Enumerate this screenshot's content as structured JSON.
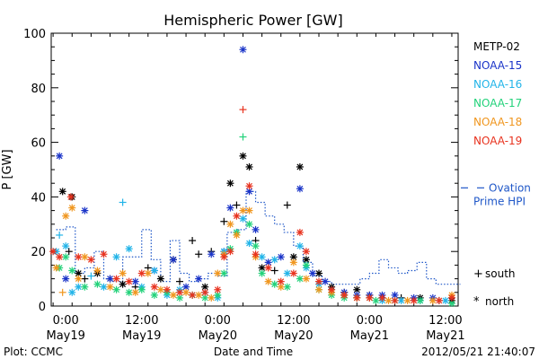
{
  "chart_data": {
    "type": "scatter",
    "title": "Hemispheric Power [GW]",
    "ylabel": "P [GW]",
    "xlabel": "Date and Time",
    "ylim": [
      0,
      100
    ],
    "yticks": [
      0,
      20,
      40,
      60,
      80,
      100
    ],
    "xlim": [
      -2.3,
      62
    ],
    "x_units": "hours since May19 00:00",
    "xticks": [
      {
        "x": 0,
        "time": "0:00",
        "date": "May19"
      },
      {
        "x": 12,
        "time": "12:00",
        "date": "May19"
      },
      {
        "x": 24,
        "time": "0:00",
        "date": "May20"
      },
      {
        "x": 36,
        "time": "12:00",
        "date": "May20"
      },
      {
        "x": 48,
        "time": "0:00",
        "date": "May21"
      },
      {
        "x": 60,
        "time": "12:00",
        "date": "May21"
      }
    ],
    "grid": false,
    "legend_position": "right",
    "markers_legend": [
      {
        "symbol": "+",
        "label": "south"
      },
      {
        "symbol": "*",
        "label": "north"
      }
    ],
    "ovation_legend": {
      "line1": "Ovation",
      "line2": "Prime HPI",
      "color": "#1f57c8"
    },
    "series": [
      {
        "name": "METP-02",
        "color": "#000000",
        "points": [
          [
            -0.5,
            42,
            "*"
          ],
          [
            1,
            40,
            "*"
          ],
          [
            0.5,
            20,
            "+"
          ],
          [
            2,
            12,
            "*"
          ],
          [
            3,
            10,
            "+"
          ],
          [
            5,
            12,
            "*"
          ],
          [
            7,
            10,
            "+"
          ],
          [
            9,
            8,
            "*"
          ],
          [
            11,
            7,
            "+"
          ],
          [
            13,
            14,
            "+"
          ],
          [
            15,
            10,
            "*"
          ],
          [
            17,
            17,
            "*"
          ],
          [
            18,
            9,
            "+"
          ],
          [
            20,
            24,
            "+"
          ],
          [
            21,
            19,
            "+"
          ],
          [
            22,
            7,
            "*"
          ],
          [
            23,
            20,
            "+"
          ],
          [
            25,
            31,
            "+"
          ],
          [
            26,
            45,
            "*"
          ],
          [
            27,
            37,
            "+"
          ],
          [
            28,
            55,
            "*"
          ],
          [
            29,
            51,
            "*"
          ],
          [
            30,
            24,
            "+"
          ],
          [
            31,
            14,
            "*"
          ],
          [
            33,
            13,
            "+"
          ],
          [
            35,
            37,
            "+"
          ],
          [
            36,
            18,
            "*"
          ],
          [
            37,
            51,
            "*"
          ],
          [
            38,
            17,
            "*"
          ],
          [
            40,
            12,
            "*"
          ],
          [
            42,
            7,
            "*"
          ],
          [
            44,
            5,
            "+"
          ],
          [
            46,
            6,
            "*"
          ],
          [
            48,
            4,
            "+"
          ],
          [
            50,
            3,
            "*"
          ],
          [
            53,
            3,
            "+"
          ],
          [
            56,
            3,
            "*"
          ],
          [
            59,
            2,
            "+"
          ],
          [
            61,
            2,
            "*"
          ]
        ]
      },
      {
        "name": "NOAA-15",
        "color": "#1a34c8",
        "points": [
          [
            -1,
            55,
            "*"
          ],
          [
            0,
            10,
            "*"
          ],
          [
            3,
            35,
            "*"
          ],
          [
            7,
            10,
            "*"
          ],
          [
            11,
            9,
            "*"
          ],
          [
            14,
            13,
            "*"
          ],
          [
            17,
            17,
            "*"
          ],
          [
            19,
            7,
            "*"
          ],
          [
            21,
            10,
            "*"
          ],
          [
            23,
            19,
            "*"
          ],
          [
            25,
            20,
            "*"
          ],
          [
            26,
            36,
            "*"
          ],
          [
            28,
            94,
            "*"
          ],
          [
            29,
            42,
            "*"
          ],
          [
            30,
            28,
            "*"
          ],
          [
            32,
            16,
            "*"
          ],
          [
            34,
            18,
            "*"
          ],
          [
            37,
            43,
            "*"
          ],
          [
            39,
            12,
            "*"
          ],
          [
            41,
            9,
            "*"
          ],
          [
            44,
            5,
            "*"
          ],
          [
            46,
            4,
            "*"
          ],
          [
            48,
            4,
            "*"
          ],
          [
            50,
            4,
            "*"
          ],
          [
            52,
            4,
            "*"
          ],
          [
            55,
            3,
            "*"
          ],
          [
            58,
            3,
            "*"
          ],
          [
            61,
            3,
            "*"
          ]
        ]
      },
      {
        "name": "NOAA-16",
        "color": "#22b4e8",
        "points": [
          [
            -1.5,
            20,
            "*"
          ],
          [
            -1,
            26,
            "+"
          ],
          [
            0,
            22,
            "*"
          ],
          [
            1,
            5,
            "*"
          ],
          [
            2,
            7,
            "*"
          ],
          [
            4,
            11,
            "+"
          ],
          [
            6,
            7,
            "*"
          ],
          [
            8,
            18,
            "*"
          ],
          [
            9,
            38,
            "+"
          ],
          [
            10,
            21,
            "*"
          ],
          [
            12,
            7,
            "*"
          ],
          [
            14,
            13,
            "*"
          ],
          [
            16,
            4,
            "*"
          ],
          [
            18,
            6,
            "*"
          ],
          [
            20,
            4,
            "*"
          ],
          [
            22,
            5,
            "*"
          ],
          [
            24,
            3,
            "*"
          ],
          [
            25,
            20,
            "*"
          ],
          [
            27,
            27,
            "*"
          ],
          [
            28,
            32,
            "*"
          ],
          [
            29,
            23,
            "*"
          ],
          [
            31,
            18,
            "*"
          ],
          [
            33,
            17,
            "*"
          ],
          [
            35,
            12,
            "*"
          ],
          [
            37,
            22,
            "*"
          ],
          [
            38,
            14,
            "*"
          ],
          [
            40,
            8,
            "*"
          ],
          [
            42,
            6,
            "*"
          ],
          [
            44,
            4,
            "*"
          ],
          [
            46,
            3,
            "*"
          ],
          [
            48,
            3,
            "*"
          ],
          [
            50,
            2,
            "*"
          ],
          [
            53,
            2,
            "*"
          ],
          [
            56,
            2,
            "*"
          ],
          [
            60,
            2,
            "*"
          ]
        ]
      },
      {
        "name": "NOAA-17",
        "color": "#22d27a",
        "points": [
          [
            -1,
            14,
            "*"
          ],
          [
            0,
            18,
            "*"
          ],
          [
            1,
            13,
            "*"
          ],
          [
            3,
            7,
            "*"
          ],
          [
            5,
            8,
            "*"
          ],
          [
            8,
            6,
            "*"
          ],
          [
            10,
            5,
            "*"
          ],
          [
            12,
            6,
            "*"
          ],
          [
            14,
            4,
            "*"
          ],
          [
            16,
            5,
            "*"
          ],
          [
            18,
            3,
            "*"
          ],
          [
            20,
            4,
            "*"
          ],
          [
            22,
            3,
            "*"
          ],
          [
            24,
            4,
            "*"
          ],
          [
            25,
            12,
            "*"
          ],
          [
            26,
            21,
            "*"
          ],
          [
            27,
            27,
            "*"
          ],
          [
            28,
            62,
            "+"
          ],
          [
            29,
            30,
            "*"
          ],
          [
            30,
            22,
            "*"
          ],
          [
            31,
            12,
            "*"
          ],
          [
            33,
            8,
            "*"
          ],
          [
            35,
            7,
            "*"
          ],
          [
            37,
            10,
            "*"
          ],
          [
            38,
            15,
            "*"
          ],
          [
            40,
            6,
            "*"
          ],
          [
            42,
            4,
            "*"
          ],
          [
            44,
            3,
            "*"
          ],
          [
            46,
            3,
            "*"
          ],
          [
            49,
            2,
            "*"
          ],
          [
            52,
            2,
            "*"
          ],
          [
            56,
            2,
            "*"
          ],
          [
            61,
            1,
            "*"
          ]
        ]
      },
      {
        "name": "NOAA-18",
        "color": "#f0961e",
        "points": [
          [
            -1.5,
            14,
            "*"
          ],
          [
            -0.5,
            5,
            "+"
          ],
          [
            0,
            33,
            "*"
          ],
          [
            1,
            36,
            "*"
          ],
          [
            2,
            10,
            "*"
          ],
          [
            3,
            18,
            "*"
          ],
          [
            5,
            13,
            "*"
          ],
          [
            7,
            7,
            "*"
          ],
          [
            9,
            12,
            "*"
          ],
          [
            11,
            5,
            "*"
          ],
          [
            13,
            12,
            "*"
          ],
          [
            15,
            6,
            "*"
          ],
          [
            17,
            4,
            "*"
          ],
          [
            19,
            5,
            "*"
          ],
          [
            21,
            4,
            "*"
          ],
          [
            23,
            3,
            "*"
          ],
          [
            24,
            12,
            "*"
          ],
          [
            25,
            19,
            "*"
          ],
          [
            26,
            30,
            "*"
          ],
          [
            27,
            26,
            "*"
          ],
          [
            28,
            35,
            "*"
          ],
          [
            29,
            35,
            "*"
          ],
          [
            30,
            18,
            "*"
          ],
          [
            32,
            9,
            "*"
          ],
          [
            34,
            7,
            "*"
          ],
          [
            36,
            16,
            "*"
          ],
          [
            38,
            10,
            "*"
          ],
          [
            40,
            6,
            "*"
          ],
          [
            42,
            5,
            "*"
          ],
          [
            44,
            4,
            "*"
          ],
          [
            46,
            3,
            "*"
          ],
          [
            48,
            3,
            "*"
          ],
          [
            51,
            2,
            "*"
          ],
          [
            54,
            2,
            "*"
          ],
          [
            58,
            2,
            "*"
          ],
          [
            61,
            4,
            "*"
          ]
        ]
      },
      {
        "name": "NOAA-19",
        "color": "#e8321e",
        "points": [
          [
            -2,
            20,
            "*"
          ],
          [
            -1,
            18,
            "*"
          ],
          [
            0.8,
            40,
            "*"
          ],
          [
            2,
            18,
            "*"
          ],
          [
            4,
            17,
            "*"
          ],
          [
            6,
            19,
            "*"
          ],
          [
            8,
            10,
            "*"
          ],
          [
            10,
            9,
            "*"
          ],
          [
            12,
            12,
            "*"
          ],
          [
            14,
            7,
            "*"
          ],
          [
            16,
            6,
            "*"
          ],
          [
            18,
            5,
            "*"
          ],
          [
            20,
            4,
            "*"
          ],
          [
            22,
            5,
            "*"
          ],
          [
            24,
            6,
            "*"
          ],
          [
            25,
            18,
            "*"
          ],
          [
            26,
            20,
            "*"
          ],
          [
            27,
            33,
            "*"
          ],
          [
            28,
            72,
            "+"
          ],
          [
            29,
            44,
            "*"
          ],
          [
            30,
            19,
            "*"
          ],
          [
            32,
            14,
            "*"
          ],
          [
            34,
            9,
            "*"
          ],
          [
            36,
            12,
            "*"
          ],
          [
            37,
            27,
            "*"
          ],
          [
            38,
            20,
            "*"
          ],
          [
            40,
            9,
            "*"
          ],
          [
            42,
            6,
            "*"
          ],
          [
            44,
            4,
            "*"
          ],
          [
            46,
            3,
            "*"
          ],
          [
            48,
            3,
            "*"
          ],
          [
            50,
            3,
            "*"
          ],
          [
            52,
            2,
            "*"
          ],
          [
            55,
            2,
            "*"
          ],
          [
            59,
            2,
            "*"
          ],
          [
            61,
            3,
            "*"
          ]
        ]
      }
    ],
    "ovation_step_line": {
      "color": "#1f57c8",
      "points": [
        [
          -1.5,
          28
        ],
        [
          0,
          29
        ],
        [
          1.5,
          12
        ],
        [
          3,
          14
        ],
        [
          4.5,
          20
        ],
        [
          6,
          10
        ],
        [
          7.5,
          9
        ],
        [
          9,
          18
        ],
        [
          10.5,
          18
        ],
        [
          12,
          28
        ],
        [
          13.5,
          17
        ],
        [
          15,
          9
        ],
        [
          16.5,
          24
        ],
        [
          18,
          12
        ],
        [
          19.5,
          9
        ],
        [
          21,
          10
        ],
        [
          22.5,
          12
        ],
        [
          24,
          11
        ],
        [
          25.5,
          27
        ],
        [
          27,
          28
        ],
        [
          28.5,
          42
        ],
        [
          30,
          38
        ],
        [
          31.5,
          33
        ],
        [
          33,
          30
        ],
        [
          34.5,
          27
        ],
        [
          36,
          22
        ],
        [
          37.5,
          16
        ],
        [
          39,
          11
        ],
        [
          40.5,
          9
        ],
        [
          42,
          8
        ],
        [
          43.5,
          8
        ],
        [
          45,
          8
        ],
        [
          46.5,
          10
        ],
        [
          48,
          12
        ],
        [
          49.5,
          17
        ],
        [
          51,
          14
        ],
        [
          52.5,
          12
        ],
        [
          54,
          13
        ],
        [
          55.5,
          16
        ],
        [
          57,
          10
        ],
        [
          58.5,
          8
        ],
        [
          60,
          8
        ],
        [
          61.5,
          8
        ]
      ]
    }
  },
  "footer": {
    "left": "Plot: CCMC",
    "center": "Date and Time",
    "right": "2012/05/21 21:40:07"
  }
}
